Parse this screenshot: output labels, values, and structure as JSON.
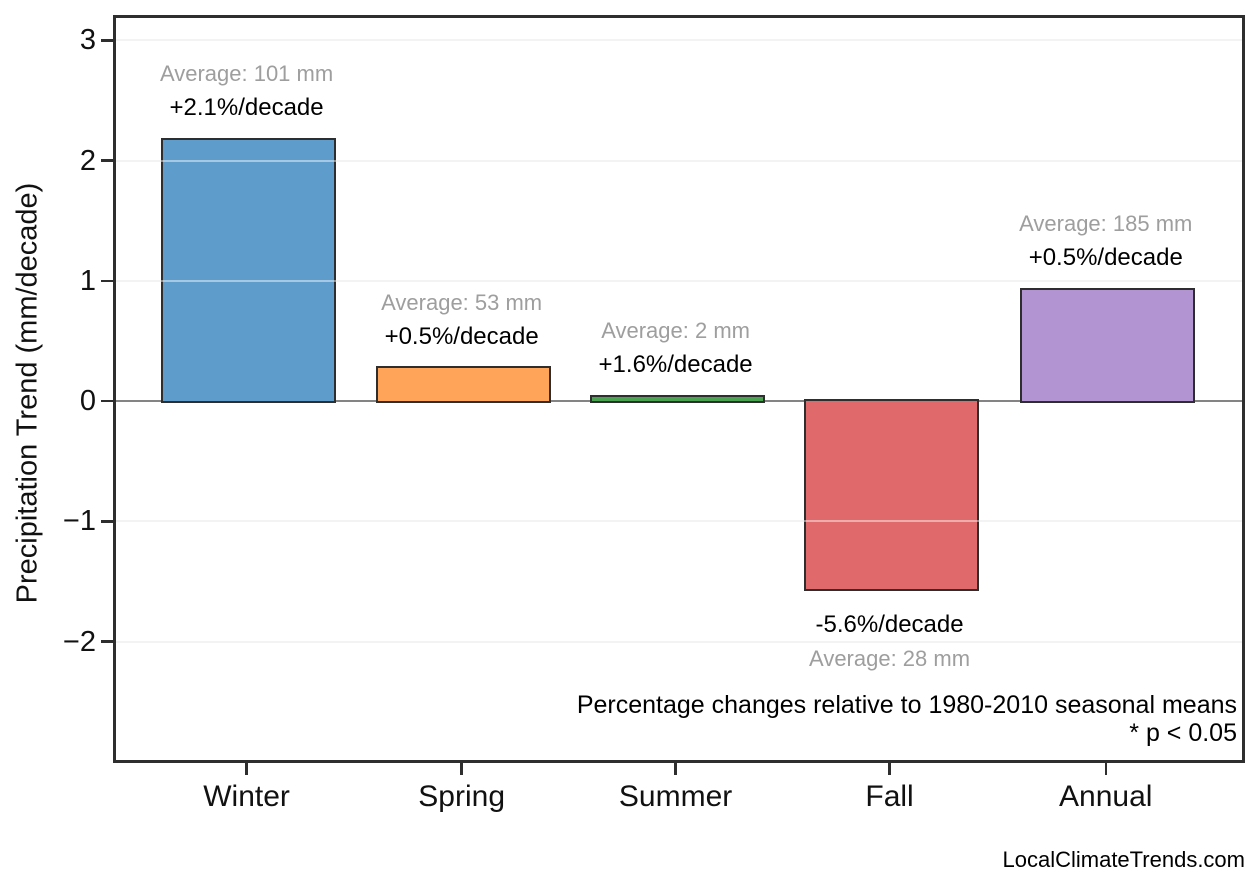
{
  "figure": {
    "ylabel": "Precipitation Trend (mm/decade)",
    "watermark": "LocalClimateTrends.com"
  },
  "chart_data": {
    "type": "bar",
    "title": "",
    "xlabel": "",
    "ylabel": "Precipitation Trend (mm/decade)",
    "categories": [
      "Winter",
      "Spring",
      "Summer",
      "Fall",
      "Annual"
    ],
    "series": [
      {
        "name": "Precipitation trend (mm/decade)",
        "values": [
          2.17,
          0.27,
          0.03,
          -1.57,
          0.92
        ]
      }
    ],
    "bars": [
      {
        "category": "Winter",
        "trend_mm_per_decade": 2.17,
        "percent_label": "+2.1%/decade",
        "average_label": "Average: 101 mm",
        "average_mm": 101,
        "percent_per_decade": 2.1,
        "color": "#5d9ccb"
      },
      {
        "category": "Spring",
        "trend_mm_per_decade": 0.27,
        "percent_label": "+0.5%/decade",
        "average_label": "Average: 53 mm",
        "average_mm": 53,
        "percent_per_decade": 0.5,
        "color": "#ffa458"
      },
      {
        "category": "Summer",
        "trend_mm_per_decade": 0.03,
        "percent_label": "+1.6%/decade",
        "average_label": "Average: 2 mm",
        "average_mm": 2,
        "percent_per_decade": 1.6,
        "color": "#4ba351"
      },
      {
        "category": "Fall",
        "trend_mm_per_decade": -1.57,
        "percent_label": "-5.6%/decade",
        "average_label": "Average: 28 mm",
        "average_mm": 28,
        "percent_per_decade": -5.6,
        "color": "#e06a6b"
      },
      {
        "category": "Annual",
        "trend_mm_per_decade": 0.92,
        "percent_label": "+0.5%/decade",
        "average_label": "Average: 185 mm",
        "average_mm": 185,
        "percent_per_decade": 0.5,
        "color": "#b294d2"
      }
    ],
    "y_ticks": [
      "3",
      "2",
      "1",
      "0",
      "−1",
      "−2"
    ],
    "y_tick_values": [
      3,
      2,
      1,
      0,
      -1,
      -2
    ],
    "gridline_values": [
      3,
      2,
      1,
      -1,
      -2
    ],
    "ylim": [
      -3.01,
      3.21
    ],
    "grid": true,
    "legend": "none",
    "zero_line": true,
    "annotations": [
      "Percentage changes relative to 1980-2010 seasonal means",
      "* p < 0.05"
    ]
  },
  "colors": {
    "background": "#ffffff",
    "bar_edge": "#2e2e2e",
    "frame": "#2e2e2e",
    "zero_line": "#848484",
    "gridline": "#e9e9e9",
    "average_text": "#9e9e9e",
    "percent_text": "#000000"
  }
}
